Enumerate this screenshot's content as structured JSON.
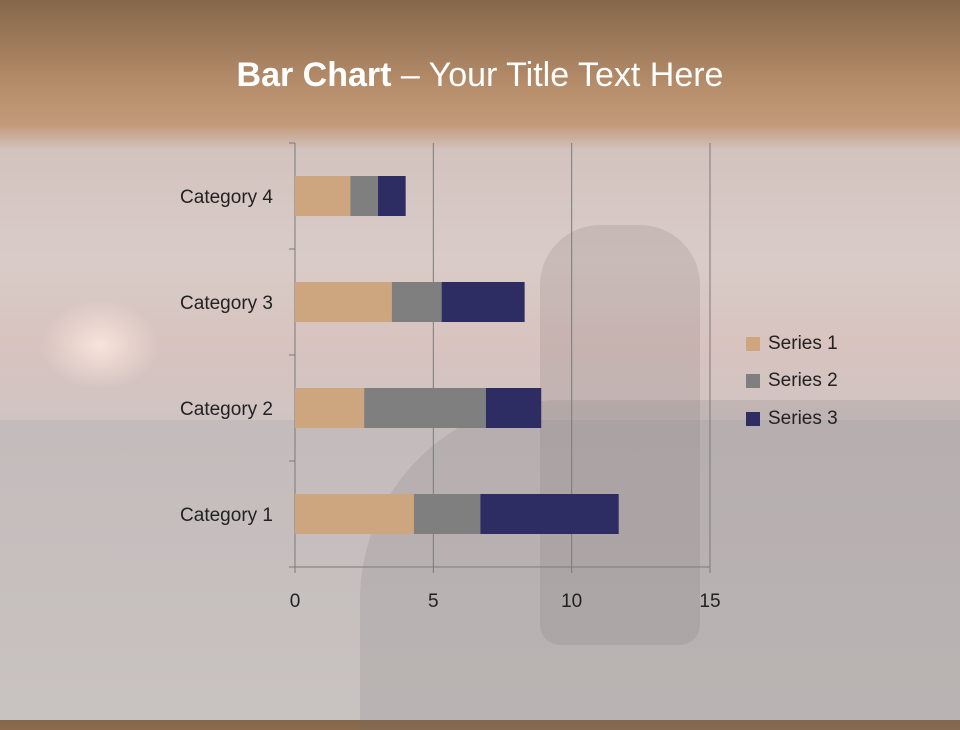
{
  "title": {
    "bold": "Bar Chart",
    "dash": " – ",
    "rest": "Your Title Text Here"
  },
  "chart_data": {
    "type": "bar",
    "orientation": "horizontal",
    "stacked": true,
    "categories": [
      "Category 1",
      "Category 2",
      "Category 3",
      "Category 4"
    ],
    "series": [
      {
        "name": "Series 1",
        "values": [
          4.3,
          2.5,
          3.5,
          2.0
        ],
        "color": "#cda680"
      },
      {
        "name": "Series 2",
        "values": [
          2.4,
          4.4,
          1.8,
          1.0
        ],
        "color": "#7f7f7f"
      },
      {
        "name": "Series 3",
        "values": [
          5.0,
          2.0,
          3.0,
          1.0
        ],
        "color": "#2e2d63"
      }
    ],
    "xlim": [
      0,
      15
    ],
    "xticks": [
      "0",
      "5",
      "10",
      "15"
    ],
    "grid": true,
    "legend": "right"
  }
}
